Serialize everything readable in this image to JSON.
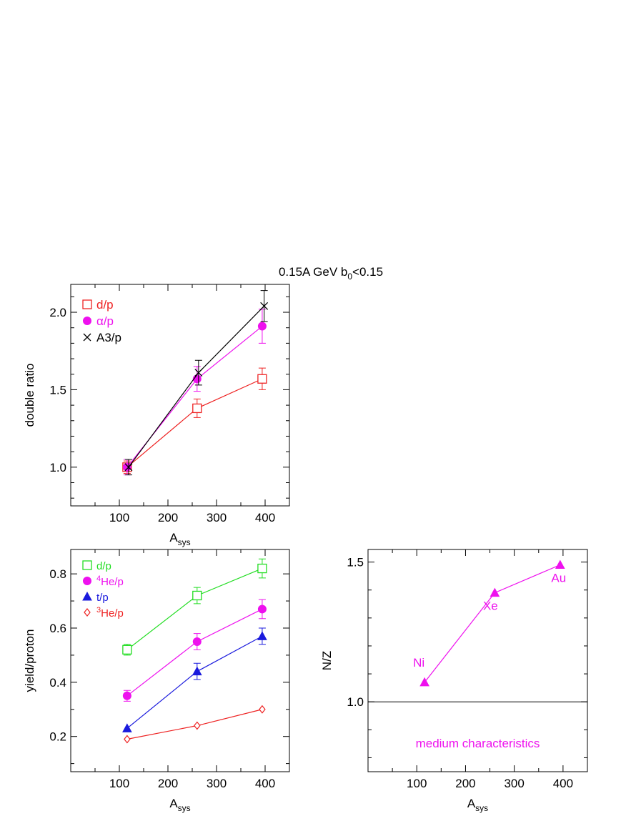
{
  "figure": {
    "title_main": "0.15A GeV  b",
    "title_sub": "0",
    "title_tail": "<0.15"
  },
  "colors": {
    "red": "#ee2222",
    "magenta": "#ee11ee",
    "black": "#000000",
    "green": "#22dd22",
    "blue": "#1a1add"
  },
  "chart_data": [
    {
      "id": "double-ratio",
      "type": "line",
      "xlabel_main": "A",
      "xlabel_sub": "sys",
      "ylabel": "double ratio",
      "xlim": [
        0,
        450
      ],
      "ylim": [
        0.75,
        2.18
      ],
      "xticks": [
        100,
        200,
        300,
        400
      ],
      "xtick_labels": [
        "100",
        "200",
        "300",
        "400"
      ],
      "yticks": [
        1.0,
        1.5,
        2.0
      ],
      "ytick_labels": [
        "1.0",
        "1.5",
        "2.0"
      ],
      "series": [
        {
          "name": "d/p",
          "color": "red",
          "marker": "open-square",
          "x": [
            116,
            260,
            394
          ],
          "y": [
            1.0,
            1.38,
            1.57
          ],
          "err": [
            0.04,
            0.06,
            0.07
          ]
        },
        {
          "name": "α/p",
          "color": "magenta",
          "marker": "filled-circle",
          "x": [
            116,
            260,
            394
          ],
          "y": [
            1.0,
            1.57,
            1.91
          ],
          "err": [
            0.05,
            0.08,
            0.11
          ]
        },
        {
          "name": "A3/p",
          "color": "black",
          "marker": "cross",
          "x": [
            119,
            263,
            398
          ],
          "y": [
            1.0,
            1.61,
            2.04
          ],
          "err": [
            0.05,
            0.08,
            0.1
          ]
        }
      ],
      "legend": [
        {
          "label": "d/p",
          "color": "red",
          "marker": "open-square"
        },
        {
          "label": "α/p",
          "color": "magenta",
          "marker": "filled-circle"
        },
        {
          "label": "A3/p",
          "color": "black",
          "marker": "cross"
        }
      ]
    },
    {
      "id": "yield-proton",
      "type": "line",
      "xlabel_main": "A",
      "xlabel_sub": "sys",
      "ylabel": "yield/proton",
      "xlim": [
        0,
        450
      ],
      "ylim": [
        0.07,
        0.89
      ],
      "xticks": [
        100,
        200,
        300,
        400
      ],
      "xtick_labels": [
        "100",
        "200",
        "300",
        "400"
      ],
      "yticks": [
        0.2,
        0.4,
        0.6,
        0.8
      ],
      "ytick_labels": [
        "0.2",
        "0.4",
        "0.6",
        "0.8"
      ],
      "series": [
        {
          "name": "d/p",
          "color": "green",
          "marker": "open-square",
          "x": [
            116,
            260,
            394
          ],
          "y": [
            0.52,
            0.72,
            0.82
          ],
          "err": [
            0.02,
            0.03,
            0.035
          ]
        },
        {
          "name": "4He/p",
          "color": "magenta",
          "marker": "filled-circle",
          "x": [
            116,
            260,
            394
          ],
          "y": [
            0.35,
            0.55,
            0.67
          ],
          "err": [
            0.02,
            0.03,
            0.035
          ]
        },
        {
          "name": "t/p",
          "color": "blue",
          "marker": "filled-triangle",
          "x": [
            116,
            260,
            394
          ],
          "y": [
            0.23,
            0.44,
            0.57
          ],
          "err": [
            0.0,
            0.03,
            0.03
          ]
        },
        {
          "name": "3He/p",
          "color": "red",
          "marker": "open-diamond",
          "x": [
            116,
            260,
            394
          ],
          "y": [
            0.19,
            0.24,
            0.3
          ],
          "err": [
            0.0,
            0.0,
            0.0
          ]
        }
      ],
      "legend": [
        {
          "label_pre": "",
          "label_sup": "",
          "label": "d/p",
          "color": "green",
          "marker": "open-square"
        },
        {
          "label_pre": "",
          "label_sup": "4",
          "label": "He/p",
          "color": "magenta",
          "marker": "filled-circle"
        },
        {
          "label_pre": "",
          "label_sup": "",
          "label": "t/p",
          "color": "blue",
          "marker": "filled-triangle"
        },
        {
          "label_pre": "",
          "label_sup": "3",
          "label": "He/p",
          "color": "red",
          "marker": "open-diamond"
        }
      ]
    },
    {
      "id": "n-over-z",
      "type": "line",
      "xlabel_main": "A",
      "xlabel_sub": "sys",
      "ylabel": "N/Z",
      "xlim": [
        0,
        450
      ],
      "ylim": [
        0.75,
        1.545
      ],
      "xticks": [
        100,
        200,
        300,
        400
      ],
      "xtick_labels": [
        "100",
        "200",
        "300",
        "400"
      ],
      "yticks": [
        1.0,
        1.5
      ],
      "ytick_labels": [
        "1.0",
        "1.5"
      ],
      "reference_line_y": 1.0,
      "annotation": "medium characteristics",
      "series": [
        {
          "name": "",
          "color": "magenta",
          "marker": "filled-triangle",
          "x": [
            116,
            260,
            394
          ],
          "y": [
            1.07,
            1.39,
            1.49
          ],
          "err": [
            0,
            0,
            0
          ]
        }
      ],
      "point_labels": [
        "Ni",
        "Xe",
        "Au"
      ]
    }
  ]
}
